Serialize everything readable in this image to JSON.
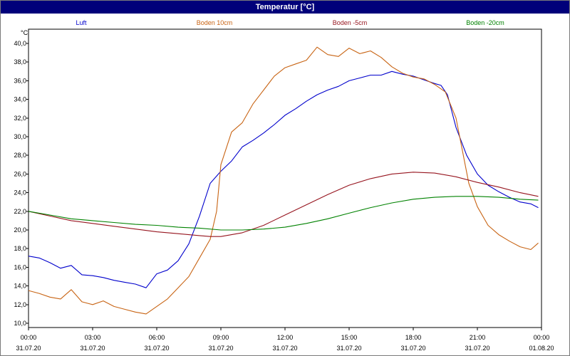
{
  "window": {
    "title": "Temperatur [°C]"
  },
  "chart_data": {
    "type": "line",
    "title": "Temperatur [°C]",
    "ylabel": "°C",
    "ylim": [
      10,
      40.5
    ],
    "yticks": [
      "10,0",
      "12,0",
      "14,0",
      "16,0",
      "18,0",
      "20,0",
      "22,0",
      "24,0",
      "26,0",
      "28,0",
      "30,0",
      "32,0",
      "34,0",
      "36,0",
      "38,0",
      "40,0"
    ],
    "xticks": [
      {
        "h": 0,
        "time": "00:00",
        "date": "31.07.20"
      },
      {
        "h": 3,
        "time": "03:00",
        "date": "31.07.20"
      },
      {
        "h": 6,
        "time": "06:00",
        "date": "31.07.20"
      },
      {
        "h": 9,
        "time": "09:00",
        "date": "31.07.20"
      },
      {
        "h": 12,
        "time": "12:00",
        "date": "31.07.20"
      },
      {
        "h": 15,
        "time": "15:00",
        "date": "31.07.20"
      },
      {
        "h": 18,
        "time": "18:00",
        "date": "31.07.20"
      },
      {
        "h": 21,
        "time": "21:00",
        "date": "31.07.20"
      },
      {
        "h": 24,
        "time": "00:00",
        "date": "01.08.20"
      }
    ],
    "grid": true,
    "legend_position": "top",
    "series": [
      {
        "name": "Luft",
        "color": "#0000cc",
        "x": [
          0,
          0.5,
          1,
          1.5,
          2,
          2.5,
          3,
          3.5,
          4,
          4.5,
          5,
          5.5,
          6,
          6.5,
          7,
          7.5,
          8,
          8.5,
          9,
          9.5,
          10,
          10.5,
          11,
          11.5,
          12,
          12.5,
          13,
          13.5,
          14,
          14.5,
          15,
          15.5,
          16,
          16.5,
          17,
          17.5,
          18,
          18.5,
          19,
          19.3,
          19.6,
          20,
          20.5,
          21,
          21.5,
          22,
          22.5,
          23,
          23.5,
          23.85
        ],
        "y": [
          17.2,
          17.0,
          16.5,
          15.9,
          16.2,
          15.2,
          15.1,
          14.9,
          14.6,
          14.4,
          14.2,
          13.8,
          15.3,
          15.7,
          16.7,
          18.5,
          21.5,
          25.0,
          26.3,
          27.4,
          28.9,
          29.6,
          30.4,
          31.3,
          32.3,
          33.0,
          33.8,
          34.5,
          35.0,
          35.4,
          36.0,
          36.3,
          36.6,
          36.6,
          37.0,
          36.7,
          36.5,
          36.1,
          35.7,
          35.5,
          34.5,
          31.0,
          28.0,
          26.0,
          24.8,
          24.1,
          23.5,
          23.0,
          22.8,
          22.4
        ]
      },
      {
        "name": "Boden 10cm",
        "color": "#c86414",
        "x": [
          0,
          0.5,
          1,
          1.5,
          2,
          2.5,
          3,
          3.5,
          4,
          4.5,
          5,
          5.5,
          6,
          6.5,
          7,
          7.5,
          8,
          8.5,
          8.8,
          9,
          9.5,
          10,
          10.5,
          11,
          11.5,
          12,
          12.5,
          13,
          13.5,
          14,
          14.5,
          15,
          15.5,
          16,
          16.5,
          17,
          17.5,
          18,
          18.5,
          19,
          19.5,
          20,
          20.3,
          20.6,
          21,
          21.5,
          22,
          22.5,
          23,
          23.5,
          23.85
        ],
        "y": [
          13.5,
          13.2,
          12.8,
          12.6,
          13.6,
          12.3,
          12.0,
          12.4,
          11.8,
          11.5,
          11.2,
          11.0,
          11.8,
          12.6,
          13.8,
          15.0,
          17.0,
          19.0,
          22.0,
          27.0,
          30.5,
          31.5,
          33.5,
          35.0,
          36.5,
          37.4,
          37.8,
          38.2,
          39.6,
          38.8,
          38.6,
          39.5,
          38.9,
          39.2,
          38.5,
          37.5,
          36.8,
          36.4,
          36.2,
          35.6,
          34.8,
          32.0,
          28.5,
          25.0,
          22.5,
          20.5,
          19.5,
          18.8,
          18.2,
          17.9,
          18.6
        ]
      },
      {
        "name": "Boden -5cm",
        "color": "#96141e",
        "x": [
          0,
          1,
          2,
          3,
          4,
          5,
          6,
          7,
          8,
          8.5,
          9,
          10,
          11,
          12,
          13,
          14,
          15,
          16,
          17,
          18,
          19,
          20,
          21,
          22,
          23,
          23.85
        ],
        "y": [
          22.0,
          21.5,
          21.0,
          20.7,
          20.4,
          20.1,
          19.8,
          19.6,
          19.4,
          19.3,
          19.3,
          19.7,
          20.5,
          21.6,
          22.7,
          23.8,
          24.8,
          25.5,
          26.0,
          26.2,
          26.1,
          25.7,
          25.1,
          24.6,
          24.0,
          23.6
        ]
      },
      {
        "name": "Boden -20cm",
        "color": "#008200",
        "x": [
          0,
          1,
          2,
          3,
          4,
          5,
          6,
          7,
          8,
          9,
          10,
          11,
          12,
          13,
          14,
          15,
          16,
          17,
          18,
          19,
          20,
          21,
          22,
          23,
          23.85
        ],
        "y": [
          22.0,
          21.6,
          21.2,
          21.0,
          20.8,
          20.6,
          20.5,
          20.3,
          20.2,
          20.0,
          20.0,
          20.1,
          20.3,
          20.7,
          21.2,
          21.8,
          22.4,
          22.9,
          23.3,
          23.5,
          23.6,
          23.6,
          23.5,
          23.3,
          23.2
        ]
      }
    ]
  }
}
